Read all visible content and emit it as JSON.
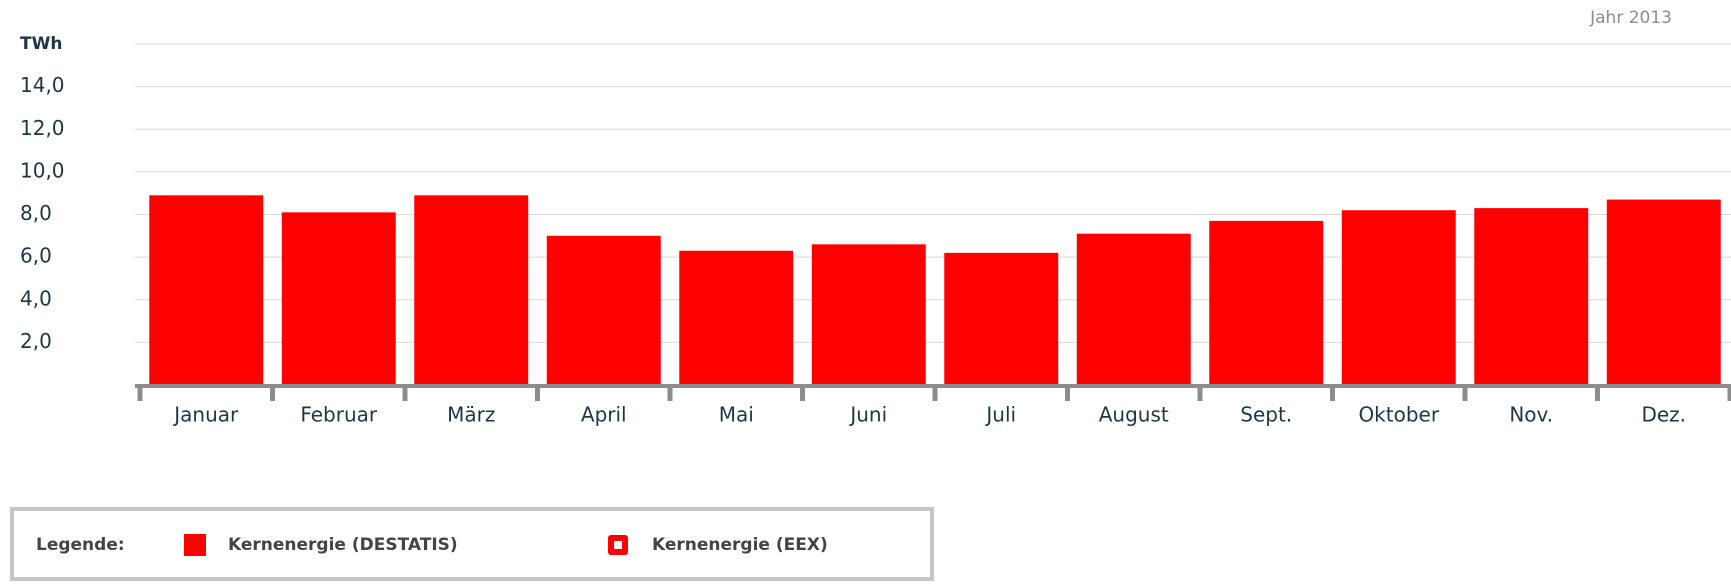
{
  "chart_data": {
    "type": "bar",
    "subtitle": "Jahr 2013",
    "y_label": "TWh",
    "categories": [
      "Januar",
      "Februar",
      "März",
      "April",
      "Mai",
      "Juni",
      "Juli",
      "August",
      "Sept.",
      "Oktober",
      "Nov.",
      "Dez."
    ],
    "series": [
      {
        "name": "Kernenergie (DESTATIS)",
        "color": "#ff0000",
        "values": [
          8.9,
          8.1,
          8.9,
          7.0,
          6.3,
          6.6,
          6.2,
          7.1,
          7.7,
          8.2,
          8.3,
          8.7
        ]
      },
      {
        "name": "Kernenergie (EEX)",
        "color": "#ff0000",
        "values": [
          null,
          null,
          null,
          null,
          null,
          null,
          null,
          null,
          null,
          null,
          null,
          null
        ]
      }
    ],
    "ylim": [
      0,
      16
    ],
    "yticks": [
      {
        "value": 2,
        "label": "2,0"
      },
      {
        "value": 4,
        "label": "4,0"
      },
      {
        "value": 6,
        "label": "6,0"
      },
      {
        "value": 8,
        "label": "8,0"
      },
      {
        "value": 10,
        "label": "10,0"
      },
      {
        "value": 12,
        "label": "12,0"
      },
      {
        "value": 14,
        "label": "14,0"
      }
    ],
    "grid": true,
    "legend_title": "Legende:"
  }
}
